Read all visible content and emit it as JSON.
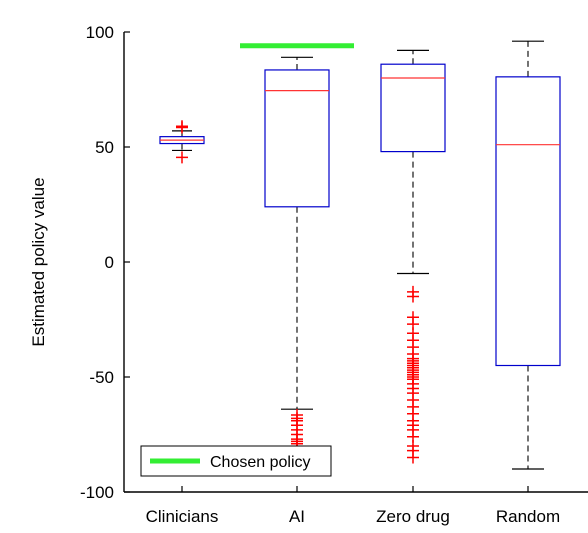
{
  "chart_data": {
    "type": "boxplot",
    "categories": [
      "Clinicians",
      "AI",
      "Zero drug",
      "Random"
    ],
    "ylabel": "Estimated policy value",
    "ylim": [
      -100,
      100
    ],
    "yticks": [
      100,
      50,
      0,
      -50,
      -100
    ],
    "grid": false,
    "legend": {
      "placement": "bottom-left",
      "entries": [
        "Chosen policy"
      ]
    },
    "boxes": [
      {
        "category": "Clinicians",
        "whisker_low": 48.5,
        "q1": 51.5,
        "median": 53,
        "q3": 54.5,
        "whisker_high": 57,
        "outliers": [
          45.5,
          58.5,
          59
        ]
      },
      {
        "category": "AI",
        "whisker_low": -64,
        "q1": 24,
        "median": 74.5,
        "q3": 83.5,
        "whisker_high": 89,
        "outliers": [
          -66.5,
          -68,
          -69,
          -71,
          -73,
          -75,
          -77,
          -78,
          -79
        ]
      },
      {
        "category": "Zero drug",
        "whisker_low": -5,
        "q1": 48,
        "median": 80,
        "q3": 86,
        "whisker_high": 92,
        "outliers": [
          -13,
          -15,
          -24,
          -27,
          -31,
          -34,
          -37,
          -40,
          -42,
          -43,
          -44,
          -45,
          -46,
          -47,
          -48,
          -49,
          -50,
          -51,
          -53,
          -55,
          -57,
          -60,
          -63,
          -66,
          -69,
          -71,
          -73,
          -76,
          -80,
          -82,
          -85
        ]
      },
      {
        "category": "Random",
        "whisker_low": -90,
        "q1": -45,
        "median": 51,
        "q3": 80.5,
        "whisker_high": 96,
        "outliers": []
      }
    ],
    "chosen_policy": {
      "label": "Chosen policy",
      "category": "AI",
      "value": 94
    },
    "colors": {
      "box": "#0000cc",
      "median": "#ff3333",
      "whisker": "#000000",
      "outlier": "#ff0000",
      "chosen": "#33ee33"
    }
  }
}
